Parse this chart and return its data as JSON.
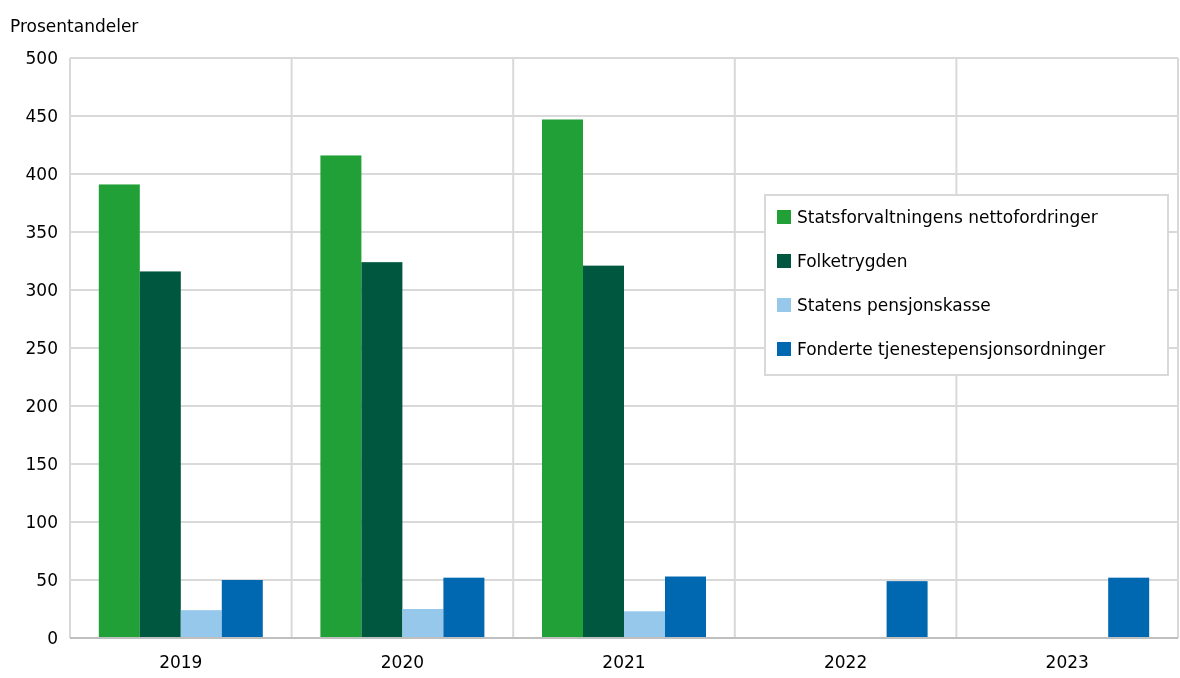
{
  "chart_data": {
    "type": "bar",
    "ylabel": "Prosentandeler",
    "categories": [
      "2019",
      "2020",
      "2021",
      "2022",
      "2023"
    ],
    "series": [
      {
        "name": "Statsforvaltningens nettofordringer",
        "color": "#21a038",
        "values": [
          391,
          416,
          447,
          null,
          null
        ]
      },
      {
        "name": "Folketrygden",
        "color": "#00573f",
        "values": [
          316,
          324,
          321,
          null,
          null
        ]
      },
      {
        "name": "Statens pensjonskasse",
        "color": "#95c8eb",
        "values": [
          24,
          25,
          23,
          null,
          null
        ]
      },
      {
        "name": "Fonderte tjenestepensjonsordninger",
        "color": "#0067b1",
        "values": [
          50,
          52,
          53,
          49,
          52
        ]
      }
    ],
    "ylim": [
      0,
      500
    ],
    "yticks": [
      0,
      50,
      100,
      150,
      200,
      250,
      300,
      350,
      400,
      450,
      500
    ],
    "grid": true,
    "legend": "right"
  }
}
